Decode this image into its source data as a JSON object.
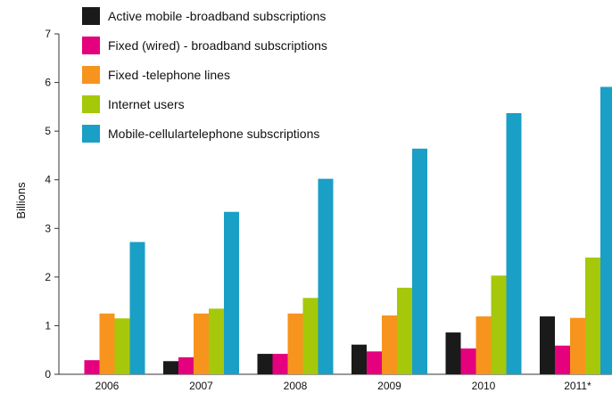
{
  "chart_data": {
    "type": "bar",
    "title": "",
    "xlabel": "",
    "ylabel": "Billions",
    "ylim": [
      0,
      7
    ],
    "yticks": [
      0,
      1,
      2,
      3,
      4,
      5,
      6,
      7
    ],
    "categories": [
      "2006",
      "2007",
      "2008",
      "2009",
      "2010",
      "2011*"
    ],
    "grid": false,
    "legend_position": "top-left",
    "series": [
      {
        "name": "Active mobile -broadband subscriptions",
        "color": "#1a1a1a",
        "values": [
          0,
          0.27,
          0.42,
          0.61,
          0.86,
          1.19
        ]
      },
      {
        "name": "Fixed (wired) - broadband subscriptions",
        "color": "#e5007d",
        "values": [
          0.29,
          0.35,
          0.42,
          0.47,
          0.53,
          0.59
        ]
      },
      {
        "name": "Fixed -telephone lines",
        "color": "#f7941d",
        "values": [
          1.25,
          1.25,
          1.25,
          1.21,
          1.19,
          1.16
        ]
      },
      {
        "name": "Internet users",
        "color": "#a6c80a",
        "values": [
          1.15,
          1.35,
          1.57,
          1.78,
          2.03,
          2.4
        ]
      },
      {
        "name": "Mobile-cellulartelephone subscriptions",
        "color": "#1a9fc6",
        "values": [
          2.72,
          3.34,
          4.02,
          4.64,
          5.37,
          5.91
        ]
      }
    ]
  }
}
